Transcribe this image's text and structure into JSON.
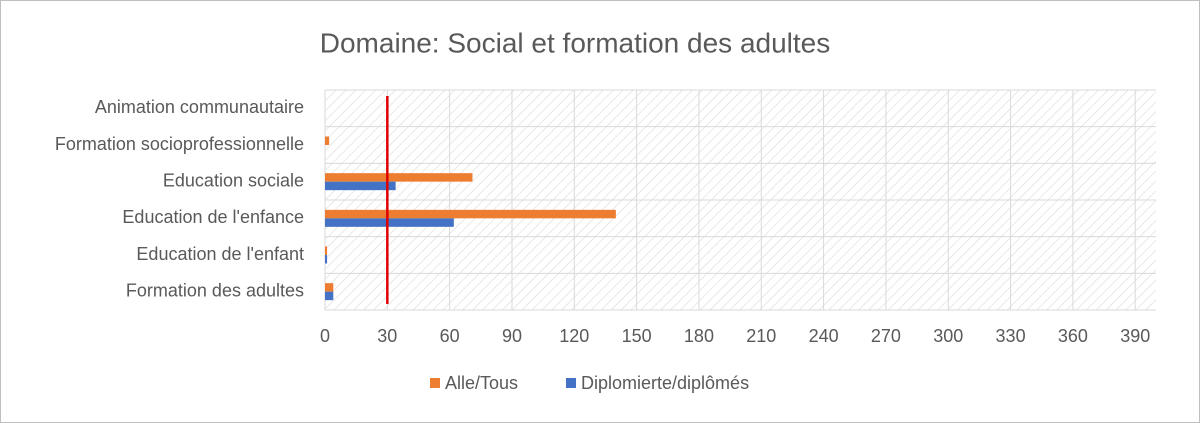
{
  "chart_data": {
    "type": "hbar",
    "title": "Domaine: Social et formation des adultes",
    "categories": [
      "Animation communautaire",
      "Formation socioprofessionnelle",
      "Education sociale",
      "Education de l'enfance",
      "Education de l'enfant",
      "Formation des adultes"
    ],
    "series": [
      {
        "name": "Alle/Tous",
        "color": "#ed7d31",
        "values": [
          0,
          2,
          71,
          140,
          1,
          4
        ]
      },
      {
        "name": "Diplomierte/diplômés",
        "color": "#4472c4",
        "values": [
          0,
          0,
          34,
          62,
          1,
          4
        ]
      }
    ],
    "xlim": [
      0,
      400
    ],
    "xticks": [
      0,
      30,
      60,
      90,
      120,
      150,
      180,
      210,
      240,
      270,
      300,
      330,
      360,
      390
    ],
    "reference_line": {
      "value": 30,
      "color": "#e00000"
    },
    "legend": "bottom"
  }
}
